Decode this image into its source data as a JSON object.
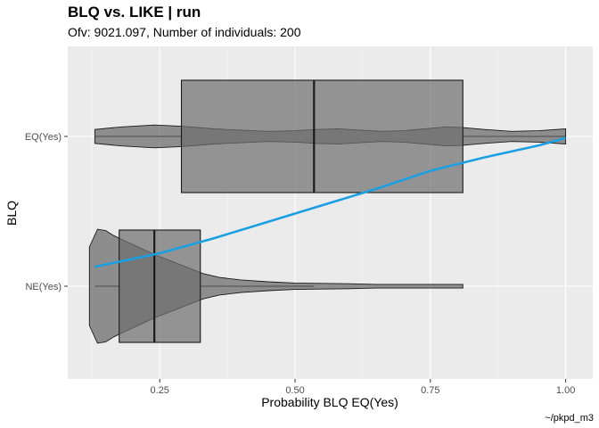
{
  "chart_data": {
    "type": "boxplot-violin",
    "title": "BLQ vs. LIKE | run",
    "subtitle": "Ofv: 9021.097, Number of individuals: 200",
    "xlabel": "Probability BLQ EQ(Yes)",
    "ylabel": "BLQ",
    "caption": "~/pkpd_m3",
    "xlim": [
      0.08,
      1.05
    ],
    "x_ticks": [
      0.25,
      0.5,
      0.75,
      1.0
    ],
    "x_tick_labels": [
      "0.25",
      "0.50",
      "0.75",
      "1.00"
    ],
    "categories": [
      "NE(Yes)",
      "EQ(Yes)"
    ],
    "groups": [
      {
        "category": "EQ(Yes)",
        "box": {
          "q1": 0.29,
          "median": 0.535,
          "q3": 0.81,
          "whisker_low": 0.13,
          "whisker_high": 1.0
        },
        "violin": {
          "x": [
            0.13,
            0.18,
            0.24,
            0.29,
            0.35,
            0.4,
            0.45,
            0.5,
            0.54,
            0.58,
            0.62,
            0.66,
            0.7,
            0.74,
            0.78,
            0.81,
            0.85,
            0.9,
            0.95,
            1.0
          ],
          "half_width": [
            0.11,
            0.15,
            0.18,
            0.16,
            0.12,
            0.1,
            0.08,
            0.09,
            0.11,
            0.12,
            0.1,
            0.08,
            0.09,
            0.12,
            0.15,
            0.14,
            0.11,
            0.08,
            0.09,
            0.12
          ]
        }
      },
      {
        "category": "NE(Yes)",
        "box": {
          "q1": 0.175,
          "median": 0.24,
          "q3": 0.325,
          "whisker_low": 0.13,
          "whisker_high": 0.535
        },
        "violin": {
          "x": [
            0.12,
            0.135,
            0.15,
            0.165,
            0.18,
            0.2,
            0.22,
            0.24,
            0.27,
            0.3,
            0.33,
            0.36,
            0.4,
            0.45,
            0.5,
            0.55,
            0.6,
            0.65,
            0.7,
            0.75,
            0.78,
            0.81
          ],
          "half_width": [
            0.62,
            0.9,
            0.88,
            0.8,
            0.74,
            0.66,
            0.58,
            0.5,
            0.4,
            0.3,
            0.2,
            0.14,
            0.1,
            0.07,
            0.05,
            0.045,
            0.04,
            0.03,
            0.03,
            0.03,
            0.03,
            0.03
          ]
        }
      }
    ],
    "trend": {
      "color": "#1a9fe3",
      "x": [
        0.13,
        0.25,
        0.35,
        0.45,
        0.55,
        0.65,
        0.75,
        0.85,
        0.95,
        1.0
      ],
      "y": [
        0.13,
        0.22,
        0.32,
        0.43,
        0.54,
        0.65,
        0.77,
        0.86,
        0.94,
        0.99
      ]
    },
    "colors": {
      "panel": "#ebebeb",
      "grid_major": "#ffffff",
      "box_fill": "#6e6e6e",
      "violin_fill": "#5a5a5a",
      "outline": "#1a1a1a"
    },
    "grid": true,
    "legend": "none"
  }
}
